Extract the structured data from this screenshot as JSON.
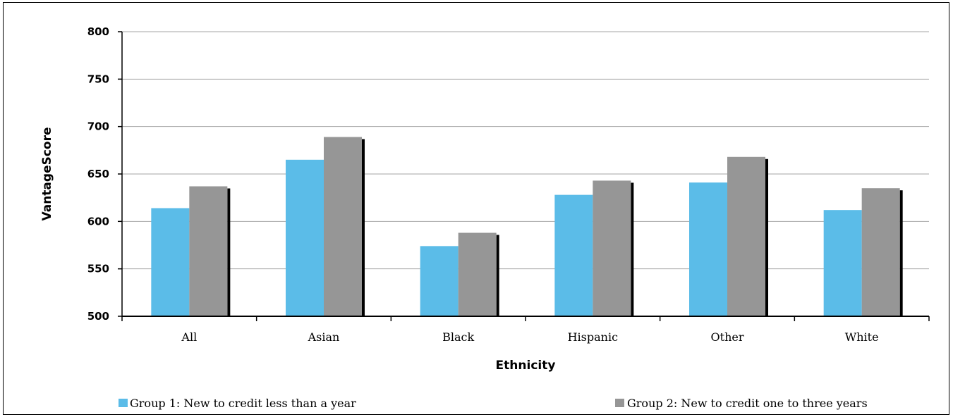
{
  "chart_data": {
    "type": "bar",
    "title": "",
    "xlabel": "Ethnicity",
    "ylabel": "VantageScore",
    "ylim": [
      500,
      800
    ],
    "yticks": [
      500,
      550,
      600,
      650,
      700,
      750,
      800
    ],
    "categories": [
      "All",
      "Asian",
      "Black",
      "Hispanic",
      "Other",
      "White"
    ],
    "series": [
      {
        "name": "Group 1: New to credit less than a year",
        "color": "#5bbce8",
        "values": [
          614,
          665,
          574,
          628,
          641,
          612
        ]
      },
      {
        "name": "Group 2: New to credit one to three years",
        "color": "#969696",
        "values": [
          637,
          689,
          588,
          643,
          668,
          635
        ]
      }
    ],
    "grid": true,
    "legend_position": "bottom"
  }
}
